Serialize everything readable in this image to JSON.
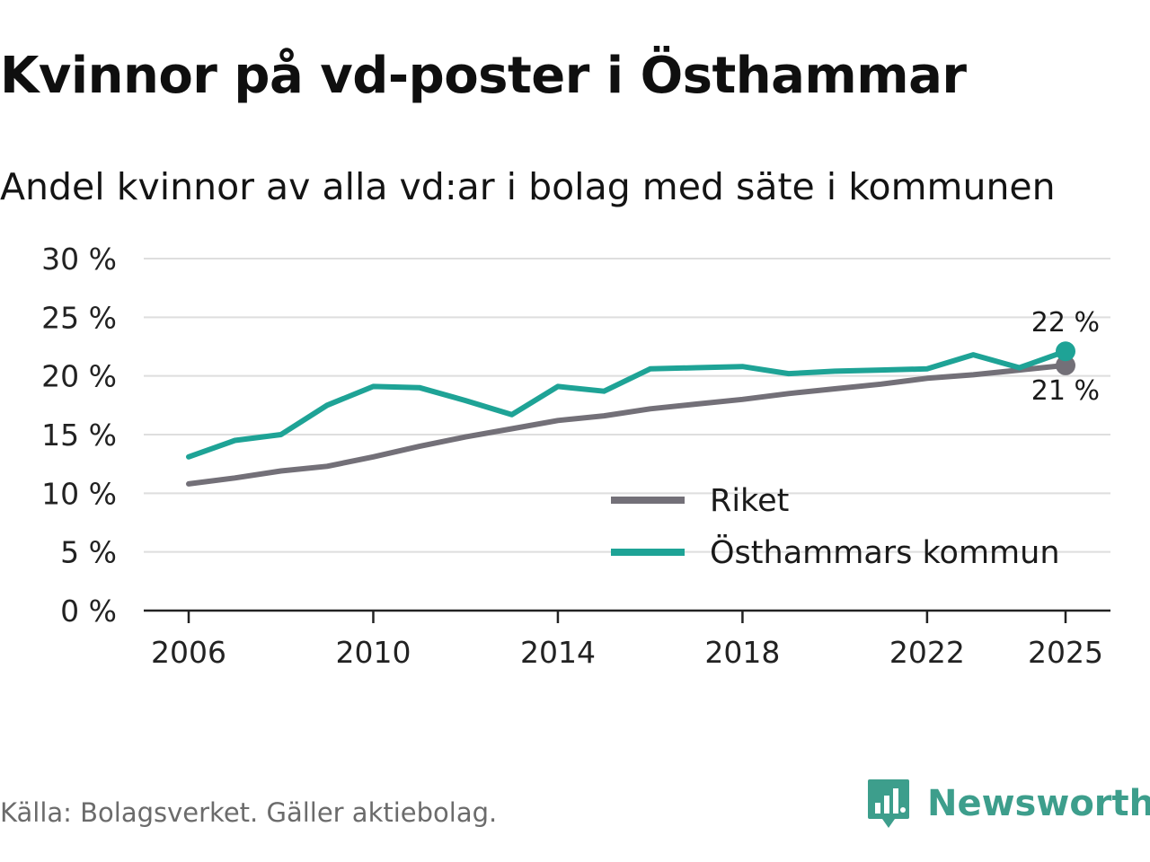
{
  "chart_data": {
    "type": "line",
    "title": "Kvinnor på vd-poster i Östhammar",
    "subtitle": "Andel kvinnor av alla vd:ar i bolag med säte i kommunen",
    "x": [
      2006,
      2007,
      2008,
      2009,
      2010,
      2011,
      2012,
      2013,
      2014,
      2015,
      2016,
      2017,
      2018,
      2019,
      2020,
      2021,
      2022,
      2023,
      2024,
      2025
    ],
    "x_ticks": [
      2006,
      2010,
      2014,
      2018,
      2022,
      2025
    ],
    "y_ticks": [
      0,
      5,
      10,
      15,
      20,
      25,
      30
    ],
    "y_tick_labels": [
      "0 %",
      "5 %",
      "10 %",
      "15 %",
      "20 %",
      "25 %",
      "30 %"
    ],
    "ylim": [
      0,
      30
    ],
    "grid": true,
    "legend_position": "bottom-right",
    "series": [
      {
        "name": "Riket",
        "color": "#737078",
        "values": [
          10.8,
          11.3,
          11.9,
          12.3,
          13.1,
          14.0,
          14.8,
          15.5,
          16.2,
          16.6,
          17.2,
          17.6,
          18.0,
          18.5,
          18.9,
          19.3,
          19.8,
          20.1,
          20.5,
          20.9
        ],
        "end_label": "21 %"
      },
      {
        "name": "Östhammars kommun",
        "color": "#1ea396",
        "values": [
          13.1,
          14.5,
          15.0,
          17.5,
          19.1,
          19.0,
          17.9,
          16.7,
          19.1,
          18.7,
          20.6,
          20.7,
          20.8,
          20.2,
          20.4,
          20.5,
          20.6,
          21.8,
          20.7,
          22.1
        ],
        "end_label": "22 %"
      }
    ]
  },
  "footer": {
    "source": "Källa: Bolagsverket. Gäller aktiebolag.",
    "brand": "Newsworthy",
    "brand_color": "#3d9e8c"
  },
  "icons": {
    "brand_logo": "bar-chart-speech-bubble-icon"
  }
}
